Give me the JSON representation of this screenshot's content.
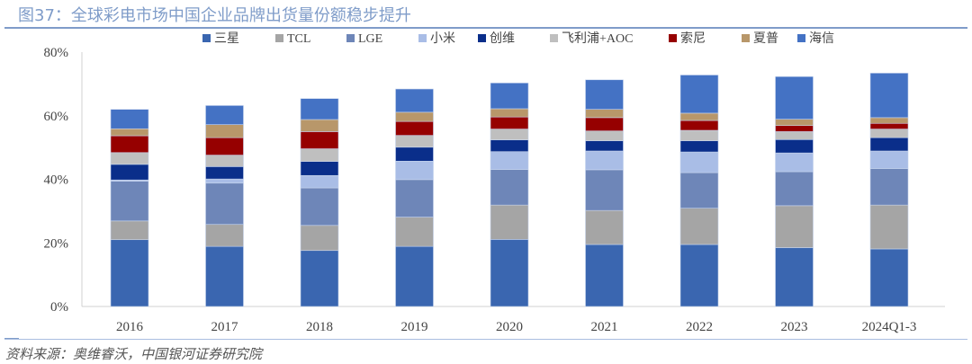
{
  "title": "图37：全球彩电市场中国企业品牌出货量份额稳步提升",
  "source": "资料来源：奥维睿沃，中国银河证券研究院",
  "chart_data": {
    "type": "bar",
    "stacked": true,
    "categories": [
      "2016",
      "2017",
      "2018",
      "2019",
      "2020",
      "2021",
      "2022",
      "2023",
      "2024Q1-3"
    ],
    "ylim": [
      0,
      80
    ],
    "yticks": [
      "0%",
      "20%",
      "40%",
      "60%",
      "80%"
    ],
    "ytick_values": [
      0,
      20,
      40,
      60,
      80
    ],
    "grid": false,
    "legend_position": "top",
    "series": [
      {
        "name": "三星",
        "color": "#3a66b0",
        "values": [
          21.0,
          18.9,
          17.6,
          18.9,
          21.1,
          19.5,
          19.5,
          18.5,
          18.1
        ]
      },
      {
        "name": "TCL",
        "color": "#a5a5a5",
        "values": [
          5.9,
          6.9,
          7.9,
          9.2,
          10.8,
          10.7,
          11.4,
          13.2,
          13.8
        ]
      },
      {
        "name": "LGE",
        "color": "#6e86b8",
        "values": [
          12.5,
          13.0,
          11.8,
          11.8,
          11.2,
          12.8,
          11.2,
          10.7,
          11.5
        ]
      },
      {
        "name": "小米",
        "color": "#a9bde6",
        "values": [
          0.4,
          1.3,
          3.9,
          5.8,
          5.6,
          5.9,
          6.5,
          5.9,
          5.5
        ]
      },
      {
        "name": "创维",
        "color": "#0a2e8a",
        "values": [
          4.9,
          3.9,
          4.4,
          4.4,
          3.7,
          3.2,
          3.5,
          4.2,
          4.2
        ]
      },
      {
        "name": "飞利浦+AOC",
        "color": "#bfbfbf",
        "values": [
          3.7,
          3.6,
          4.0,
          3.7,
          3.4,
          3.1,
          3.3,
          2.5,
          2.7
        ]
      },
      {
        "name": "索尼",
        "color": "#960000",
        "values": [
          5.3,
          5.5,
          5.4,
          4.4,
          3.8,
          4.2,
          3.1,
          1.9,
          1.8
        ]
      },
      {
        "name": "夏普",
        "color": "#b8976a",
        "values": [
          2.2,
          4.1,
          3.8,
          2.9,
          2.6,
          2.6,
          2.3,
          2.0,
          1.8
        ]
      },
      {
        "name": "海信",
        "color": "#4472c4",
        "values": [
          6.1,
          6.0,
          6.6,
          7.3,
          8.1,
          9.3,
          12.0,
          13.4,
          14.0
        ]
      }
    ]
  }
}
